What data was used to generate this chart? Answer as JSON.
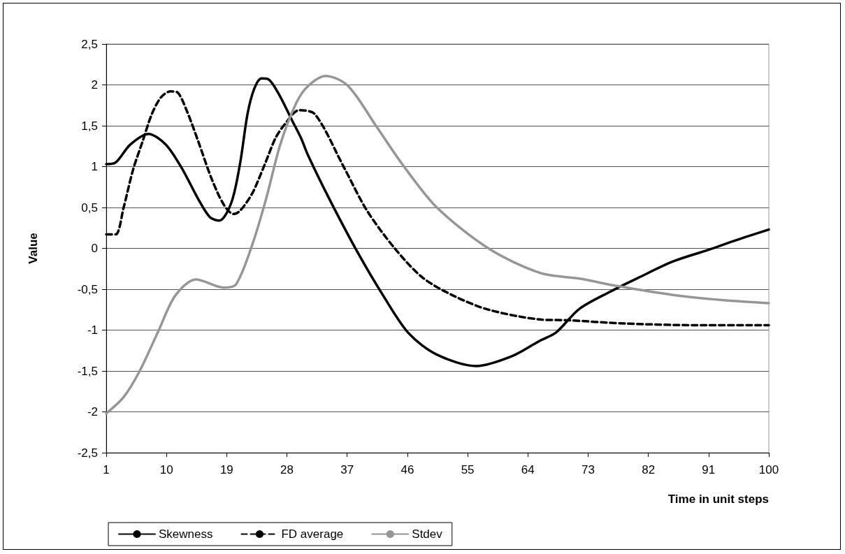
{
  "chart_data": {
    "type": "line",
    "xlabel": "Time in unit steps",
    "ylabel": "Value",
    "xlim": [
      1,
      100
    ],
    "xticks": [
      1,
      10,
      19,
      28,
      37,
      46,
      55,
      64,
      73,
      82,
      91,
      100
    ],
    "ylim": [
      -2.5,
      2.5
    ],
    "yticks": [
      {
        "value": -2.5,
        "label": "-2,5"
      },
      -2,
      {
        "value": -1.5,
        "label": "-1,5"
      },
      -1,
      {
        "value": -0.5,
        "label": "-0,5"
      },
      0,
      {
        "value": 0.5,
        "label": "0,5"
      },
      1,
      {
        "value": 1.5,
        "label": "1,5"
      },
      2,
      {
        "value": 2.5,
        "label": "2,5"
      }
    ],
    "grid": "y",
    "legend": "bottom left",
    "series": [
      {
        "name": "Skewness",
        "color": "#000000",
        "line_style": "solid",
        "x": [
          1,
          2.4,
          4.6,
          7.3,
          9.9,
          12.3,
          14.7,
          16.5,
          17.9,
          19.7,
          21,
          22.1,
          23.1,
          24.2,
          25.2,
          26.7,
          28.8,
          30.1,
          31.2,
          34.3,
          38.5,
          42.4,
          46.2,
          50.4,
          56.3,
          61.6,
          65.8,
          68.2,
          71.7,
          76.3,
          80.5,
          85.7,
          90.9,
          95.1,
          100
        ],
        "values": [
          1.03,
          1.05,
          1.27,
          1.4,
          1.27,
          0.98,
          0.61,
          0.38,
          0.34,
          0.56,
          1.04,
          1.64,
          1.95,
          2.08,
          2.07,
          1.9,
          1.56,
          1.35,
          1.13,
          0.61,
          -0.04,
          -0.58,
          -1.04,
          -1.3,
          -1.44,
          -1.32,
          -1.13,
          -1.03,
          -0.74,
          -0.53,
          -0.36,
          -0.16,
          -0.02,
          0.1,
          0.23
        ]
      },
      {
        "name": "FD average",
        "color": "#000000",
        "line_style": "dashed",
        "x": [
          1,
          2.4,
          3.6,
          5,
          6.4,
          7.8,
          9.2,
          10.6,
          11.6,
          13,
          14.7,
          16.8,
          18.6,
          20,
          21,
          22.8,
          24.6,
          26.3,
          27.7,
          29.8,
          32.2,
          36.4,
          39.9,
          44.1,
          48.3,
          52.9,
          58.1,
          65.8,
          70,
          78.7,
          89.2,
          100
        ],
        "values": [
          0.17,
          0.17,
          0.5,
          0.96,
          1.3,
          1.64,
          1.85,
          1.92,
          1.91,
          1.69,
          1.32,
          0.84,
          0.53,
          0.42,
          0.46,
          0.67,
          1.01,
          1.35,
          1.52,
          1.69,
          1.64,
          1.01,
          0.47,
          0,
          -0.36,
          -0.58,
          -0.75,
          -0.87,
          -0.88,
          -0.92,
          -0.94,
          -0.94
        ]
      },
      {
        "name": "Stdev",
        "color": "#969696",
        "line_style": "solid",
        "x": [
          1,
          3.6,
          6,
          8.8,
          11.3,
          14.4,
          18.6,
          20.4,
          22.8,
          24.9,
          27,
          29.4,
          31.2,
          33.8,
          37.1,
          41.3,
          45.5,
          50.4,
          58.1,
          65.8,
          71.7,
          77.3,
          85.7,
          92.7,
          100
        ],
        "values": [
          -2.02,
          -1.82,
          -1.5,
          -1.01,
          -0.58,
          -0.38,
          -0.48,
          -0.44,
          0.04,
          0.61,
          1.27,
          1.78,
          1.99,
          2.11,
          1.99,
          1.5,
          1,
          0.5,
          0,
          -0.3,
          -0.37,
          -0.46,
          -0.57,
          -0.63,
          -0.67
        ]
      }
    ]
  }
}
